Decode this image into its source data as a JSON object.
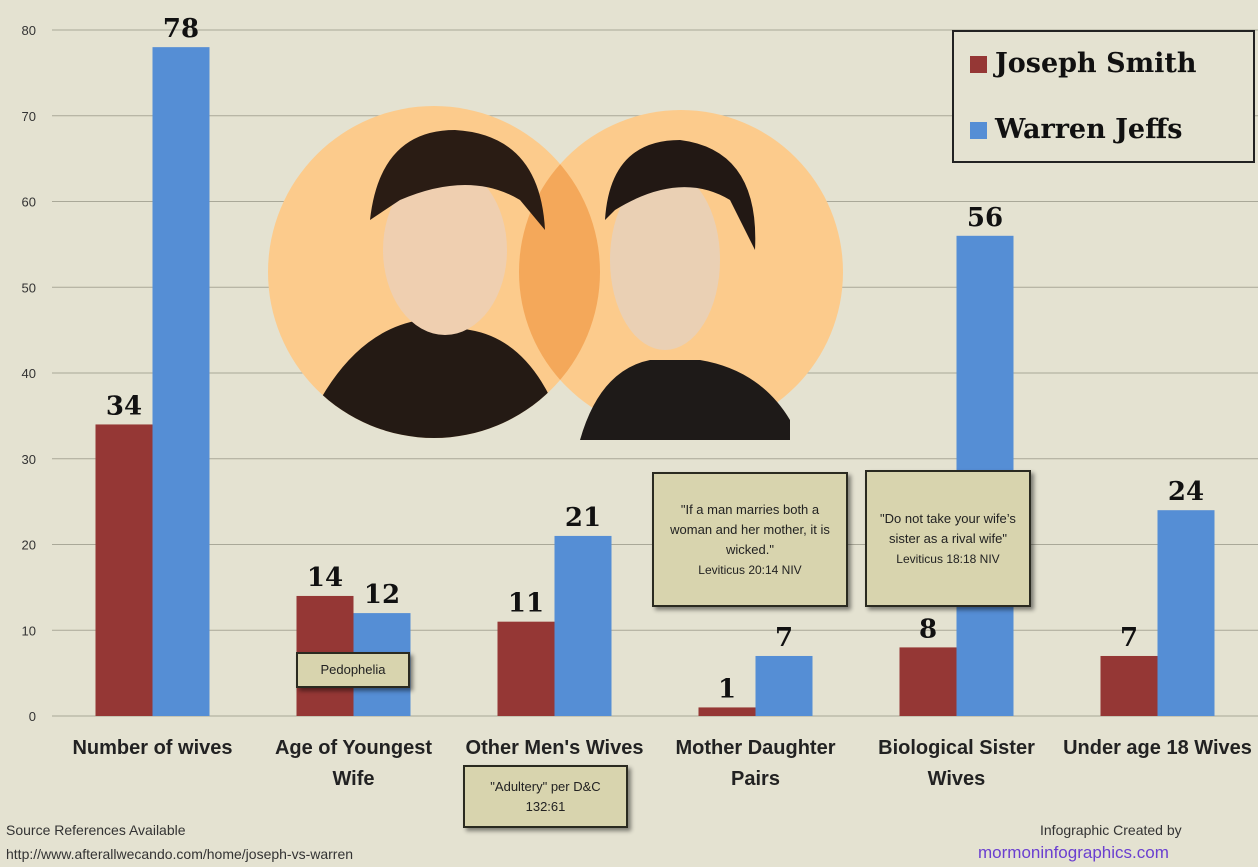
{
  "chart_data": {
    "type": "bar",
    "categories": [
      "Number of wives",
      "Age of Youngest Wife",
      "Other Men's Wives",
      "Mother Daughter Pairs",
      "Biological Sister Wives",
      "Under age 18 Wives"
    ],
    "series": [
      {
        "name": "Joseph Smith",
        "color": "#953735",
        "values": [
          34,
          14,
          11,
          1,
          8,
          7
        ]
      },
      {
        "name": "Warren Jeffs",
        "color": "#558ed5",
        "values": [
          78,
          12,
          21,
          7,
          56,
          24
        ]
      }
    ],
    "ylim": [
      0,
      80
    ],
    "yticks": [
      0,
      10,
      20,
      30,
      40,
      50,
      60,
      70,
      80
    ],
    "grid": true,
    "legend": "top-right",
    "annotations": [
      {
        "text": "Pedophelia"
      },
      {
        "text": "\"Adultery\" per D&C 132:61"
      },
      {
        "text": "\"If a man marries both a woman and her mother, it is wicked.\"",
        "source": "Leviticus 20:14 NIV"
      },
      {
        "text": "\"Do not take your wife’s sister as a rival wife\"",
        "source": "Leviticus 18:18 NIV"
      }
    ]
  },
  "footer": {
    "source_note": "Source References Available",
    "url": "http://www.afterallwecando.com/home/joseph-vs-warren",
    "credit": "Infographic Created by",
    "site": "mormoninfographics.com"
  }
}
